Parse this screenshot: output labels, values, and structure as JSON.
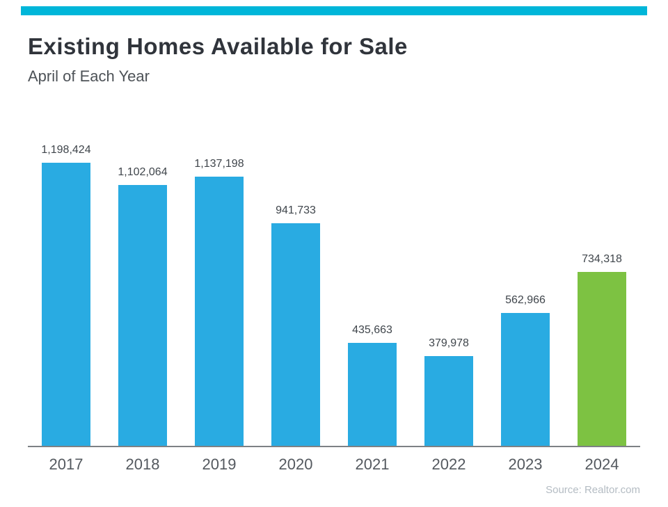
{
  "header": {
    "title": "Existing Homes Available for Sale",
    "subtitle": "April of Each Year"
  },
  "footer": {
    "source": "Source: Realtor.com"
  },
  "chart_data": {
    "type": "bar",
    "title": "Existing Homes Available for Sale",
    "subtitle": "April of Each Year",
    "xlabel": "",
    "ylabel": "",
    "categories": [
      "2017",
      "2018",
      "2019",
      "2020",
      "2021",
      "2022",
      "2023",
      "2024"
    ],
    "values": [
      1198424,
      1102064,
      1137198,
      941733,
      435663,
      379978,
      562966,
      734318
    ],
    "value_labels": [
      "1,198,424",
      "1,102,064",
      "1,137,198",
      "941,733",
      "435,663",
      "379,978",
      "562,966",
      "734,318"
    ],
    "ylim": [
      0,
      1250000
    ],
    "grid": "off",
    "legend": "none",
    "highlight_index": 7,
    "colors": {
      "bar": "#29ABE2",
      "highlight": "#7DC242",
      "accent_strip": "#00B6D9"
    }
  }
}
